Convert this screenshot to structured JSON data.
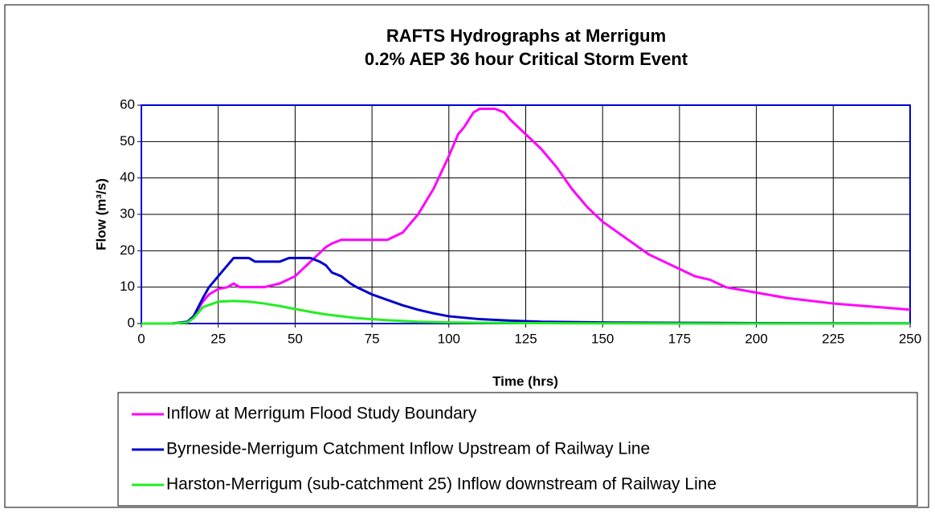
{
  "chart_data": {
    "type": "line",
    "title": [
      "RAFTS Hydrographs at Merrigum",
      "0.2% AEP 36 hour Critical Storm Event"
    ],
    "x_label": "Time (hrs)",
    "y_label": "Flow (m³/s)",
    "xlim": [
      0,
      250
    ],
    "ylim": [
      0,
      60
    ],
    "xticks": [
      0,
      25,
      50,
      75,
      100,
      125,
      150,
      175,
      200,
      225,
      250
    ],
    "yticks": [
      0,
      10,
      20,
      30,
      40,
      50,
      60
    ],
    "grid": true,
    "legend": "bottom",
    "series": [
      {
        "name": "Inflow at Merrigum Flood Study Boundary",
        "color": "#ff00ff",
        "x": [
          0,
          10,
          15,
          17,
          20,
          22,
          25,
          28,
          30,
          32,
          35,
          40,
          45,
          50,
          55,
          60,
          62,
          65,
          70,
          75,
          80,
          85,
          90,
          95,
          100,
          103,
          105,
          108,
          110,
          115,
          118,
          120,
          125,
          130,
          135,
          140,
          145,
          150,
          155,
          160,
          165,
          170,
          175,
          180,
          185,
          190,
          200,
          210,
          225,
          240,
          250
        ],
        "values": [
          0,
          0,
          0.5,
          2,
          6,
          8,
          9.5,
          10,
          11,
          10,
          10,
          10,
          11,
          13,
          17,
          21,
          22,
          23,
          23,
          23,
          23,
          25,
          30,
          37,
          46,
          52,
          54,
          58,
          59,
          59,
          58,
          56,
          52,
          48,
          43,
          37,
          32,
          28,
          25,
          22,
          19,
          17,
          15,
          13,
          12,
          10,
          8.5,
          7,
          5.5,
          4.5,
          3.8
        ]
      },
      {
        "name": "Byrneside-Merrigum Catchment Inflow Upstream of Railway Line",
        "color": "#0000cc",
        "x": [
          0,
          10,
          15,
          17,
          20,
          22,
          25,
          28,
          30,
          35,
          37,
          40,
          45,
          48,
          50,
          55,
          58,
          60,
          62,
          65,
          68,
          70,
          75,
          80,
          85,
          90,
          95,
          100,
          110,
          120,
          130,
          150,
          175,
          200,
          250
        ],
        "values": [
          0,
          0,
          0.5,
          2,
          7,
          10,
          13,
          16,
          18,
          18,
          17,
          17,
          17,
          18,
          18,
          18,
          17,
          16,
          14,
          13,
          11,
          10,
          8,
          6.5,
          5,
          3.8,
          2.8,
          2,
          1.2,
          0.8,
          0.5,
          0.3,
          0.2,
          0.1,
          0.05
        ]
      },
      {
        "name": "Harston-Merrigum (sub-catchment 25) Inflow downstream of Railway Line",
        "color": "#22ee22",
        "x": [
          0,
          10,
          15,
          17,
          20,
          25,
          30,
          35,
          40,
          45,
          50,
          55,
          60,
          70,
          80,
          90,
          100,
          125,
          150,
          200,
          250
        ],
        "values": [
          0,
          0,
          0.3,
          1.5,
          4.5,
          6,
          6.2,
          6,
          5.5,
          4.8,
          4,
          3.2,
          2.5,
          1.5,
          0.9,
          0.5,
          0.3,
          0.1,
          0.05,
          0,
          0
        ]
      }
    ]
  }
}
